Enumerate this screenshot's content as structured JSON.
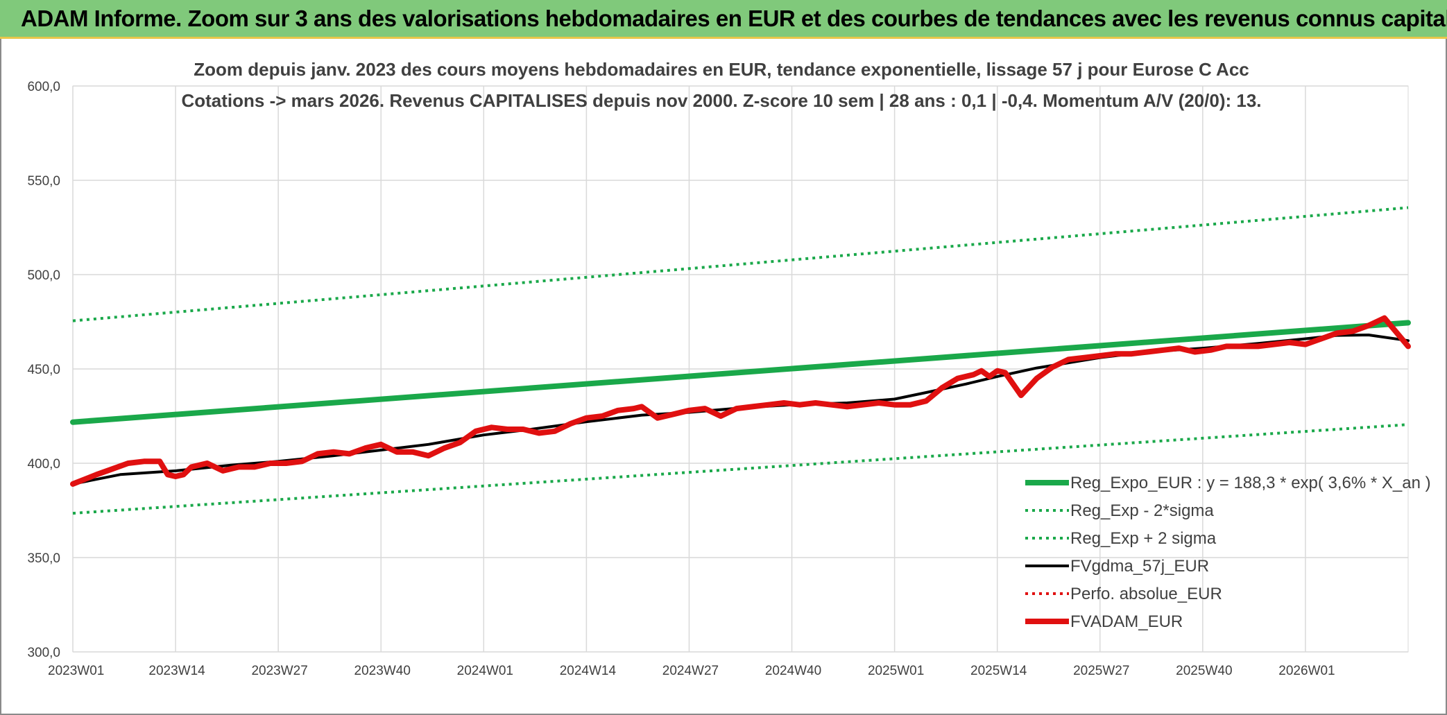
{
  "banner": {
    "title": "ADAM Informe. Zoom sur 3 ans des valorisations hebdomadaires en EUR et des courbes de tendances avec les revenus connus capitalisés"
  },
  "colors": {
    "banner_bg": "#80c97b",
    "trend_green": "#1aa84a",
    "black": "#000000",
    "red": "#e01010",
    "grid": "#d9d9d9"
  },
  "chart_data": {
    "type": "line",
    "title_line1": "Zoom depuis janv. 2023 des cours moyens hebdomadaires en EUR, tendance exponentielle, lissage 57 j pour Eurose C Acc",
    "title_line2": "Cotations -> mars 2026. Revenus CAPITALISES depuis nov 2000. Z-score 10 sem | 28 ans : 0,1 | -0,4. Momentum A/V (20/0): 13.",
    "ylim": [
      300,
      600
    ],
    "yticks": [
      "300,0",
      "350,0",
      "400,0",
      "450,0",
      "500,0",
      "550,0",
      "600,0"
    ],
    "ytick_values": [
      300,
      350,
      400,
      450,
      500,
      550,
      600
    ],
    "xlim": [
      0,
      169
    ],
    "xticks": [
      "2023W01",
      "2023W14",
      "2023W27",
      "2023W40",
      "2024W01",
      "2024W14",
      "2024W27",
      "2024W40",
      "2025W01",
      "2025W14",
      "2025W27",
      "2025W40",
      "2026W01"
    ],
    "xtick_positions": [
      0,
      13,
      26,
      39,
      52,
      65,
      78,
      91,
      104,
      117,
      130,
      143,
      156
    ],
    "grid": true,
    "legend_position": "bottom-right",
    "series": [
      {
        "name": "Reg_Expo_EUR : y = 188,3 * exp( 3,6% *  X_an )",
        "style": "thick-solid",
        "color": "#1aa84a",
        "x": [
          0,
          169
        ],
        "y": [
          421.8,
          474.5
        ]
      },
      {
        "name": "Reg_Exp - 2*sigma",
        "style": "dotted",
        "color": "#1aa84a",
        "x": [
          0,
          169
        ],
        "y": [
          373.5,
          420.5
        ]
      },
      {
        "name": "Reg_Exp + 2 sigma",
        "style": "dotted",
        "color": "#1aa84a",
        "x": [
          0,
          169
        ],
        "y": [
          475.5,
          535.5
        ]
      },
      {
        "name": "FVgdma_57j_EUR",
        "style": "solid",
        "color": "#000000",
        "x": [
          0,
          6,
          13,
          20,
          26,
          33,
          39,
          45,
          52,
          58,
          65,
          72,
          78,
          85,
          91,
          98,
          104,
          108,
          113,
          117,
          122,
          130,
          136,
          143,
          150,
          156,
          160,
          164,
          169
        ],
        "y": [
          389,
          394,
          396,
          399,
          401,
          404,
          407,
          410,
          415,
          418,
          422,
          425.5,
          427,
          429.5,
          431,
          432,
          434,
          437.5,
          442,
          446,
          450.5,
          456,
          459,
          461,
          463.5,
          466,
          467.8,
          468,
          465
        ]
      },
      {
        "name": "Perfo. absolue_EUR",
        "style": "dotted",
        "color": "#e01010",
        "x": [],
        "y": []
      },
      {
        "name": "FVADAM_EUR",
        "style": "thick-solid",
        "color": "#e01010",
        "x": [
          0,
          3,
          5,
          7,
          9,
          11,
          12,
          13,
          14,
          15,
          17,
          19,
          21,
          23,
          25,
          27,
          29,
          31,
          33,
          35,
          37,
          39,
          41,
          43,
          45,
          47,
          49,
          51,
          53,
          55,
          57,
          59,
          61,
          63,
          65,
          67,
          69,
          71,
          72,
          74,
          76,
          78,
          80,
          82,
          84,
          86,
          88,
          90,
          92,
          94,
          96,
          98,
          100,
          102,
          104,
          106,
          108,
          110,
          112,
          114,
          115,
          116,
          117,
          118,
          120,
          122,
          124,
          126,
          128,
          130,
          132,
          134,
          136,
          138,
          140,
          142,
          144,
          146,
          148,
          150,
          152,
          154,
          156,
          158,
          160,
          162,
          164,
          166,
          169
        ],
        "y": [
          389,
          394,
          397,
          400,
          401,
          401,
          394,
          393,
          394,
          398,
          400,
          396,
          398,
          398,
          400,
          400,
          401,
          405,
          406,
          405,
          408,
          410,
          406,
          406,
          404,
          408,
          411,
          417,
          419,
          418,
          418,
          416,
          417,
          421,
          424,
          425,
          428,
          429,
          430,
          424,
          426,
          428,
          429,
          425,
          429,
          430,
          431,
          432,
          431,
          432,
          431,
          430,
          431,
          432,
          431,
          431,
          433,
          440,
          445,
          447,
          449,
          446,
          449,
          448,
          436,
          445,
          451,
          455,
          456,
          457,
          458,
          458,
          459,
          460,
          461,
          459,
          460,
          462,
          462,
          462,
          463,
          464,
          463,
          466,
          469,
          470,
          473,
          477,
          462
        ]
      }
    ]
  }
}
